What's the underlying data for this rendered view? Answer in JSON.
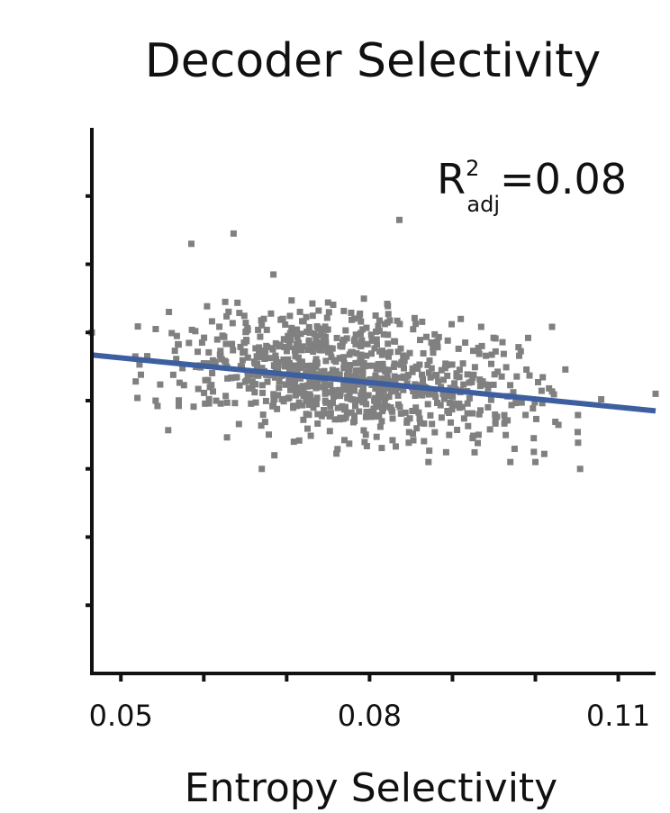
{
  "chart_data": {
    "type": "scatter",
    "title": "Decoder Selectivity",
    "xlabel": "Entropy Selectivity",
    "ylabel": "",
    "xlim": [
      0.0465,
      0.1145
    ],
    "ylim": [
      0,
      8
    ],
    "x_ticks": [
      0.05,
      0.06,
      0.07,
      0.08,
      0.09,
      0.1,
      0.11
    ],
    "x_tick_labels": [
      "0.05",
      "0.08",
      "0.11"
    ],
    "y_ticks": [
      1,
      2,
      3,
      4,
      5,
      6,
      7
    ],
    "annotation": {
      "base": "R",
      "sup": "2",
      "sub": "adj",
      "value": "=0.08"
    },
    "marker_color": "#808080",
    "fit_color": "#3d5fa0",
    "fit_line": {
      "x": [
        0.0465,
        0.1145
      ],
      "y": [
        4.67,
        3.85
      ]
    },
    "highlight_points": {
      "x": [
        0.0465,
        0.0542,
        0.0585,
        0.0636,
        0.0684,
        0.0558,
        0.0836,
        0.1,
        0.1054,
        0.067,
        0.0871,
        0.0998,
        0.1145
      ],
      "y": [
        5.0,
        5.05,
        6.3,
        6.45,
        5.85,
        5.3,
        6.65,
        3.1,
        3.0,
        3.0,
        3.1,
        3.45,
        4.1
      ]
    },
    "cloud": {
      "n": 900,
      "x_mean": 0.0775,
      "x_sd": 0.0115,
      "y_mean": 4.38,
      "y_sd": 0.45,
      "slope": -12.1,
      "x_range": [
        0.0515,
        0.108
      ],
      "y_range": [
        3.0,
        5.5
      ]
    },
    "grid": false
  }
}
